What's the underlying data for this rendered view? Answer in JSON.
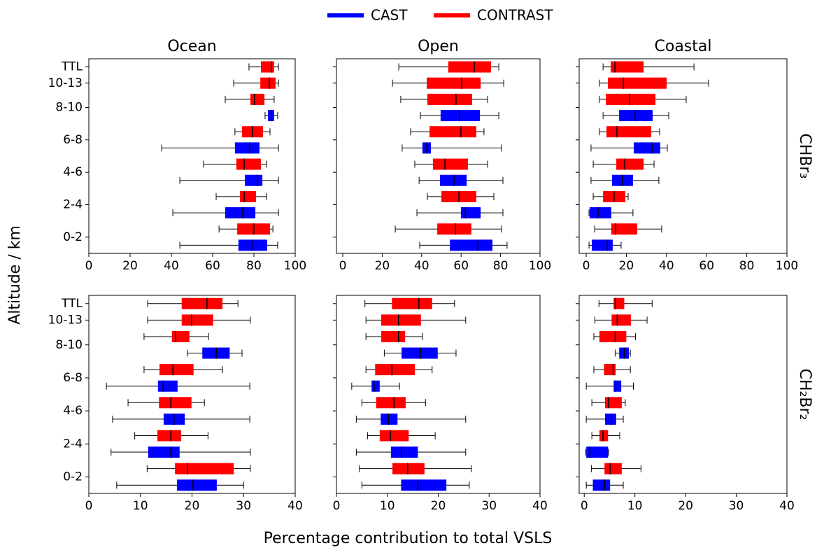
{
  "figure": {
    "ylabel": "Altitude / km",
    "xlabel": "Percentage contribution to total VSLS"
  },
  "chart_data": [
    {
      "type": "box",
      "title": "Ocean",
      "categories": [
        "TTL",
        "10-13",
        "8-10",
        "6-8",
        "4-6",
        "2-4",
        "0-2"
      ],
      "xlim": [
        0,
        100
      ],
      "xticks": [
        0,
        20,
        40,
        60,
        80,
        100
      ],
      "series": [
        {
          "name": "CAST",
          "color": "#0000ff",
          "values": [
            null,
            null,
            [
              85.4,
              86.8,
              88.5,
              89.8,
              91.5
            ],
            [
              35.3,
              70.8,
              78.0,
              82.7,
              91.9
            ],
            [
              44.1,
              75.6,
              81.7,
              84.1,
              91.9
            ],
            [
              40.7,
              66.1,
              74.6,
              80.7,
              91.9
            ],
            [
              44.1,
              72.5,
              79.0,
              86.4,
              91.5
            ]
          ]
        },
        {
          "name": "CONTRAST",
          "color": "#ff0000",
          "values": [
            [
              77.6,
              83.4,
              88.5,
              89.8,
              91.9
            ],
            [
              70.2,
              83.1,
              87.5,
              90.5,
              91.9
            ],
            [
              66.1,
              78.3,
              80.3,
              85.1,
              89.8
            ],
            [
              70.8,
              74.2,
              79.3,
              84.4,
              87.8
            ],
            [
              55.6,
              71.5,
              75.3,
              83.4,
              86.1
            ],
            [
              61.7,
              73.2,
              75.3,
              81.0,
              86.1
            ],
            [
              63.1,
              71.9,
              80.0,
              87.8,
              89.2
            ]
          ]
        }
      ]
    },
    {
      "type": "box",
      "title": "Open",
      "xlim": [
        -3.2,
        100
      ],
      "xticks": [
        0,
        20,
        40,
        60,
        80,
        100
      ],
      "series": [
        {
          "name": "CAST",
          "color": "#0000ff",
          "values": [
            null,
            null,
            [
              39.4,
              49.6,
              59.2,
              69.5,
              79.1
            ],
            [
              30.1,
              40.4,
              42.6,
              44.7,
              80.5
            ],
            [
              38.7,
              49.3,
              56.4,
              62.8,
              81.2
            ],
            [
              37.6,
              59.9,
              62.1,
              69.9,
              81.2
            ],
            [
              39.0,
              54.3,
              68.4,
              75.9,
              83.3
            ]
          ]
        },
        {
          "name": "CONTRAST",
          "color": "#ff0000",
          "values": [
            [
              28.4,
              53.5,
              66.7,
              75.2,
              79.1
            ],
            [
              25.2,
              42.6,
              60.3,
              69.9,
              81.6
            ],
            [
              29.4,
              42.9,
              57.4,
              65.6,
              73.4
            ],
            [
              34.4,
              44.0,
              59.9,
              67.7,
              71.6
            ],
            [
              36.5,
              45.7,
              51.8,
              63.5,
              73.4
            ],
            [
              42.9,
              50.0,
              58.9,
              67.7,
              76.6
            ],
            [
              26.6,
              47.9,
              57.1,
              65.2,
              80.5
            ]
          ]
        }
      ]
    },
    {
      "type": "box",
      "title": "Coastal",
      "row_label": "CHBr₃",
      "xlim": [
        -3.5,
        100
      ],
      "xticks": [
        0,
        20,
        40,
        60,
        80,
        100
      ],
      "series": [
        {
          "name": "CAST",
          "color": "#0000ff",
          "values": [
            null,
            null,
            [
              8.4,
              16.4,
              24.4,
              33.1,
              41.1
            ],
            [
              2.4,
              23.7,
              32.8,
              36.9,
              40.4
            ],
            [
              2.4,
              12.9,
              18.1,
              23.3,
              36.2
            ],
            [
              1.4,
              1.7,
              5.9,
              12.5,
              23.3
            ],
            [
              1.4,
              2.8,
              10.5,
              13.2,
              17.4
            ]
          ]
        },
        {
          "name": "CONTRAST",
          "color": "#ff0000",
          "values": [
            [
              8.4,
              12.2,
              14.3,
              28.6,
              53.7
            ],
            [
              6.6,
              10.8,
              18.5,
              40.1,
              61.0
            ],
            [
              6.6,
              9.8,
              21.6,
              34.5,
              49.8
            ],
            [
              6.6,
              10.1,
              15.3,
              32.4,
              36.6
            ],
            [
              3.5,
              15.0,
              19.2,
              28.6,
              33.8
            ],
            [
              3.5,
              8.4,
              13.9,
              19.5,
              20.9
            ],
            [
              4.2,
              12.5,
              14.6,
              25.4,
              37.6
            ]
          ]
        }
      ]
    },
    {
      "type": "box",
      "categories": [
        "TTL",
        "10-13",
        "8-10",
        "6-8",
        "4-6",
        "2-4",
        "0-2"
      ],
      "xlim": [
        0,
        40
      ],
      "xticks": [
        0,
        10,
        20,
        30,
        40
      ],
      "series": [
        {
          "name": "CAST",
          "color": "#0000ff",
          "values": [
            null,
            null,
            [
              19.1,
              22.0,
              24.7,
              27.3,
              29.7
            ],
            [
              3.4,
              13.4,
              14.4,
              17.2,
              31.2
            ],
            [
              4.6,
              14.5,
              16.5,
              18.6,
              31.2
            ],
            [
              4.3,
              11.5,
              15.9,
              17.6,
              31.3
            ],
            [
              5.4,
              17.1,
              20.2,
              24.8,
              30.0
            ]
          ]
        },
        {
          "name": "CONTRAST",
          "color": "#ff0000",
          "values": [
            [
              11.4,
              18.0,
              22.9,
              25.9,
              28.9
            ],
            [
              11.4,
              18.0,
              19.9,
              24.1,
              31.3
            ],
            [
              10.7,
              16.1,
              16.8,
              19.5,
              23.2
            ],
            [
              10.7,
              13.7,
              16.3,
              20.3,
              25.9
            ],
            [
              7.6,
              13.6,
              15.9,
              19.9,
              22.4
            ],
            [
              8.9,
              13.3,
              15.9,
              17.9,
              23.1
            ],
            [
              11.3,
              16.7,
              19.1,
              28.1,
              31.3
            ]
          ]
        }
      ]
    },
    {
      "type": "box",
      "xlim": [
        0,
        40
      ],
      "xticks": [
        0,
        10,
        20,
        30,
        40
      ],
      "series": [
        {
          "name": "CAST",
          "color": "#0000ff",
          "values": [
            null,
            null,
            [
              9.4,
              12.8,
              16.5,
              19.9,
              23.5
            ],
            [
              3.0,
              6.9,
              7.4,
              8.5,
              12.4
            ],
            [
              3.9,
              8.7,
              10.2,
              12.0,
              25.4
            ],
            [
              3.9,
              10.7,
              12.8,
              16.0,
              25.4
            ],
            [
              5.0,
              12.7,
              16.0,
              21.6,
              26.1
            ]
          ]
        },
        {
          "name": "CONTRAST",
          "color": "#ff0000",
          "values": [
            [
              5.6,
              10.9,
              16.2,
              18.8,
              23.2
            ],
            [
              5.8,
              8.8,
              12.2,
              16.6,
              25.4
            ],
            [
              5.8,
              8.8,
              12.2,
              13.5,
              16.9
            ],
            [
              5.8,
              7.6,
              10.9,
              15.4,
              18.8
            ],
            [
              5.0,
              7.8,
              11.3,
              13.6,
              17.5
            ],
            [
              6.1,
              8.5,
              10.6,
              14.2,
              19.4
            ],
            [
              4.5,
              11.0,
              14.0,
              17.3,
              26.5
            ]
          ]
        }
      ]
    },
    {
      "type": "box",
      "row_label": "CH₂Br₂",
      "xlim": [
        -1,
        40
      ],
      "xticks": [
        0,
        10,
        20,
        30,
        40
      ],
      "series": [
        {
          "name": "CAST",
          "color": "#0000ff",
          "values": [
            null,
            null,
            [
              6.1,
              6.9,
              7.9,
              8.8,
              9.1
            ],
            [
              0.4,
              5.8,
              6.2,
              7.3,
              9.7
            ],
            [
              0.4,
              4.1,
              5.4,
              6.3,
              7.7
            ],
            [
              0.3,
              0.4,
              1.1,
              4.7,
              4.8
            ],
            [
              0.4,
              1.7,
              4.0,
              5.1,
              7.7
            ]
          ]
        },
        {
          "name": "CONTRAST",
          "color": "#ff0000",
          "values": [
            [
              2.9,
              5.8,
              6.1,
              7.9,
              13.4
            ],
            [
              2.1,
              5.4,
              6.5,
              9.2,
              12.4
            ],
            [
              1.9,
              3.0,
              6.1,
              8.3,
              10.1
            ],
            [
              1.9,
              3.9,
              5.7,
              6.2,
              9.1
            ],
            [
              1.5,
              4.1,
              4.8,
              7.4,
              8.1
            ],
            [
              1.5,
              3.0,
              3.7,
              4.7,
              7.0
            ],
            [
              1.4,
              4.0,
              5.1,
              7.4,
              11.2
            ]
          ]
        }
      ]
    }
  ]
}
